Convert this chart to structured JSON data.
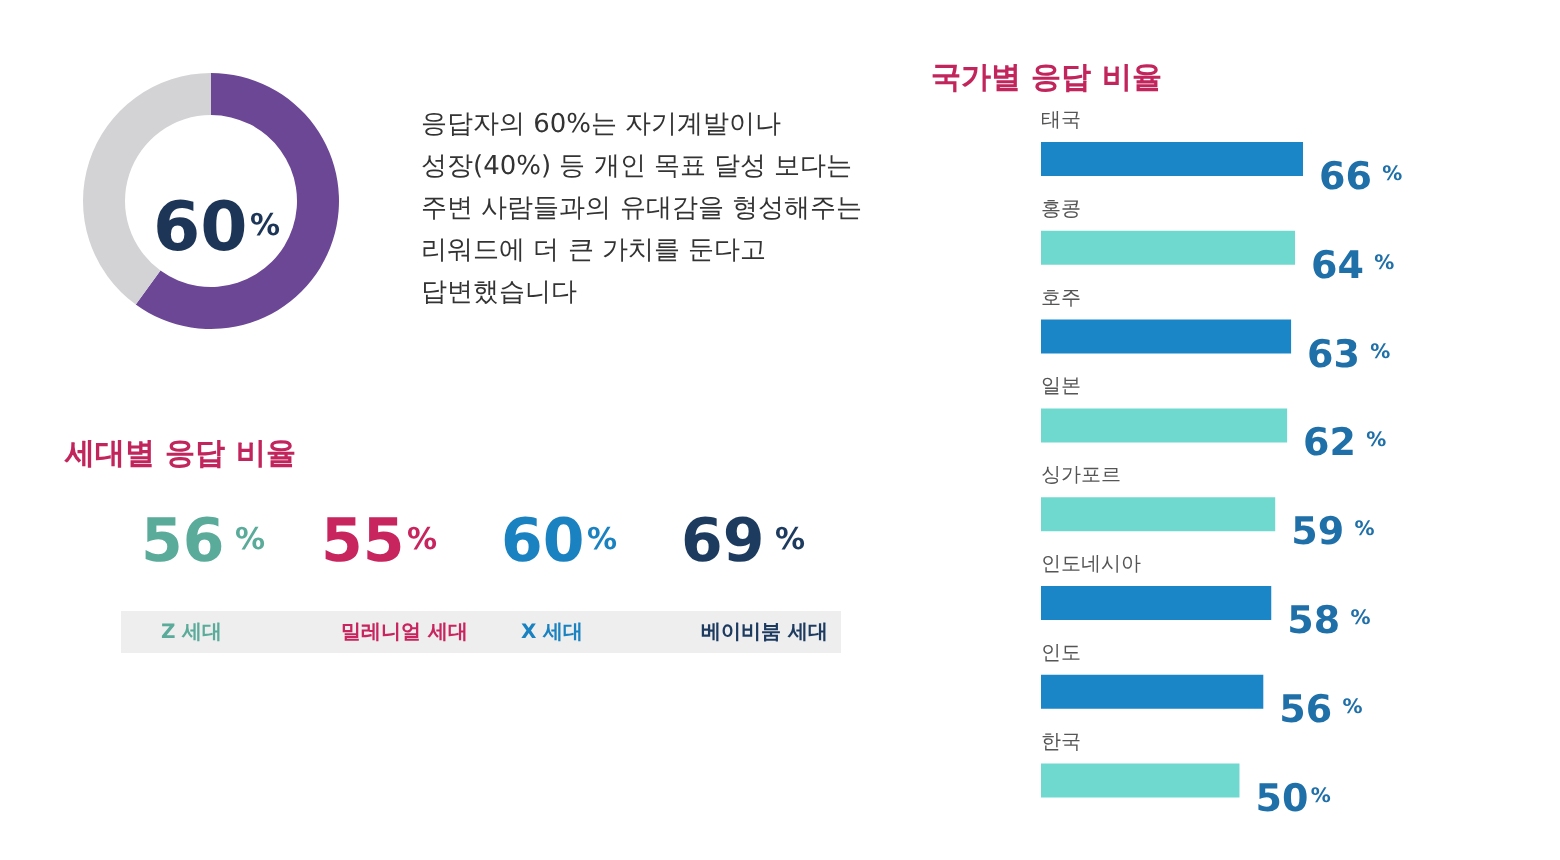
{
  "chart_data": [
    {
      "type": "donut",
      "categories": [
        null,
        null
      ],
      "values": [
        60,
        40
      ],
      "colors": [
        "#6c4796",
        "#d3d3d6"
      ],
      "value_labels": [
        "60%",
        null
      ],
      "annotations": [
        "응답자의 60%는 자기계발이나\n성장(40%) 등 개인 목표 달성 보다는\n주변 사람들과의 유대감을 형성해주는\n리워드에 더 큰 가치를 둔다고\n답변했습니다"
      ]
    },
    {
      "type": "other",
      "title": "세대별 응답 비율",
      "categories": [
        "Z 세대",
        "밀레니얼 세대",
        "X 세대",
        "베이비붐 세대"
      ],
      "values": [
        56,
        55,
        60,
        69
      ],
      "value_labels": [
        "56 %",
        "55%",
        "60%",
        "69 %"
      ]
    },
    {
      "type": "bar",
      "orientation": "horizontal",
      "title": "국가별 응답 비율",
      "categories": [
        "태국",
        "홍콩",
        "호주",
        "일본",
        "싱가포르",
        "인도네시아",
        "인도",
        "한국"
      ],
      "values": [
        66,
        64,
        63,
        62,
        59,
        58,
        56,
        50
      ],
      "colors": [
        "#1a86c8",
        "#6fd9cf",
        "#1a86c8",
        "#6fd9cf",
        "#6fd9cf",
        "#1a86c8",
        "#1a86c8",
        "#6fd9cf"
      ],
      "value_labels": [
        "66 %",
        "64 %",
        "63 %",
        "62 %",
        "59 %",
        "58 %",
        "56 %",
        "50%"
      ]
    }
  ]
}
